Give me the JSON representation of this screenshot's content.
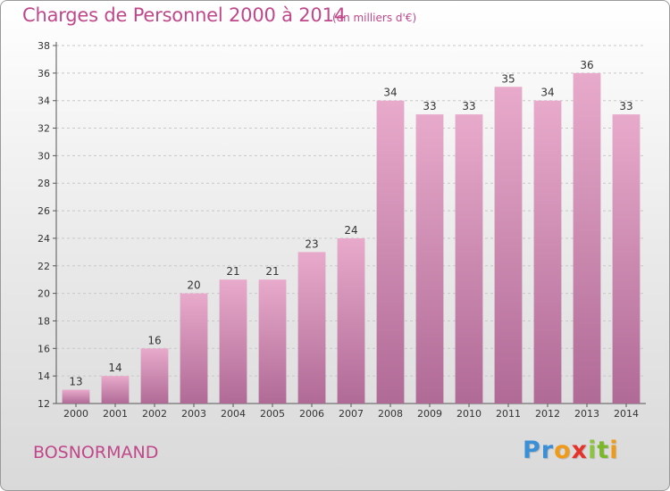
{
  "header": {
    "title": "Charges de Personnel 2000 à 2014",
    "unit_note": "(en milliers d'€)"
  },
  "footer": {
    "commune": "BOSNORMAND",
    "logo_text": "Proxiti"
  },
  "colors": {
    "accent": "#c0488a",
    "bar_top": "#e8aacb",
    "bar_bottom": "#b06a96"
  },
  "chart_data": {
    "type": "bar",
    "title": "Charges de Personnel 2000 à 2014",
    "subtitle": "(en milliers d'€)",
    "xlabel": "",
    "ylabel": "",
    "categories": [
      "2000",
      "2001",
      "2002",
      "2003",
      "2004",
      "2005",
      "2006",
      "2007",
      "2008",
      "2009",
      "2010",
      "2011",
      "2012",
      "2013",
      "2014"
    ],
    "values": [
      13,
      14,
      16,
      20,
      21,
      21,
      23,
      24,
      34,
      33,
      33,
      35,
      34,
      36,
      33
    ],
    "ylim": [
      12,
      38
    ],
    "yticks": [
      12,
      14,
      16,
      18,
      20,
      22,
      24,
      26,
      28,
      30,
      32,
      34,
      36,
      38
    ],
    "grid": true,
    "legend": "none"
  }
}
